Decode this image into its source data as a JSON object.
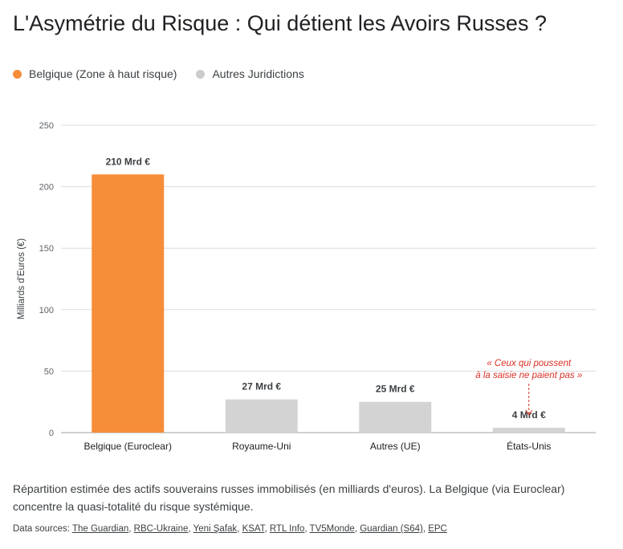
{
  "title": "L'Asymétrie du Risque : Qui détient les Avoirs Russes ?",
  "legend": [
    {
      "label": "Belgique (Zone à haut risque)",
      "color": "#f68d39"
    },
    {
      "label": "Autres Juridictions",
      "color": "#cccccc"
    }
  ],
  "chart_data": {
    "type": "bar",
    "title": "L'Asymétrie du Risque : Qui détient les Avoirs Russes ?",
    "xlabel": "",
    "ylabel": "Milliards d'Euros (€)",
    "ylim": [
      0,
      250
    ],
    "yticks": [
      0,
      50,
      100,
      150,
      200,
      250
    ],
    "grid": true,
    "legend_position": "top-left",
    "categories": [
      "Belgique (Euroclear)",
      "Royaume-Uni",
      "Autres (UE)",
      "États-Unis"
    ],
    "values": [
      210,
      27,
      25,
      4
    ],
    "data_labels": [
      "210 Mrd €",
      "27 Mrd €",
      "25 Mrd €",
      "4 Mrd €"
    ],
    "colors": [
      "#f68d39",
      "#d3d3d3",
      "#d3d3d3",
      "#d3d3d3"
    ],
    "annotation": {
      "category": "États-Unis",
      "lines": [
        "« Ceux qui poussent",
        "à la saisie ne paient pas »"
      ],
      "color": "#d93025"
    }
  },
  "caption": "Répartition estimée des actifs souverains russes immobilisés (en milliards d'euros). La Belgique (via Euroclear) concentre la quasi-totalité du risque systémique.",
  "sources": {
    "prefix": "Data sources:",
    "links": [
      "The Guardian",
      "RBC-Ukraine",
      "Yeni Şafak",
      "KSAT",
      "RTL Info",
      "TV5Monde",
      "Guardian (S64)",
      "EPC"
    ]
  }
}
